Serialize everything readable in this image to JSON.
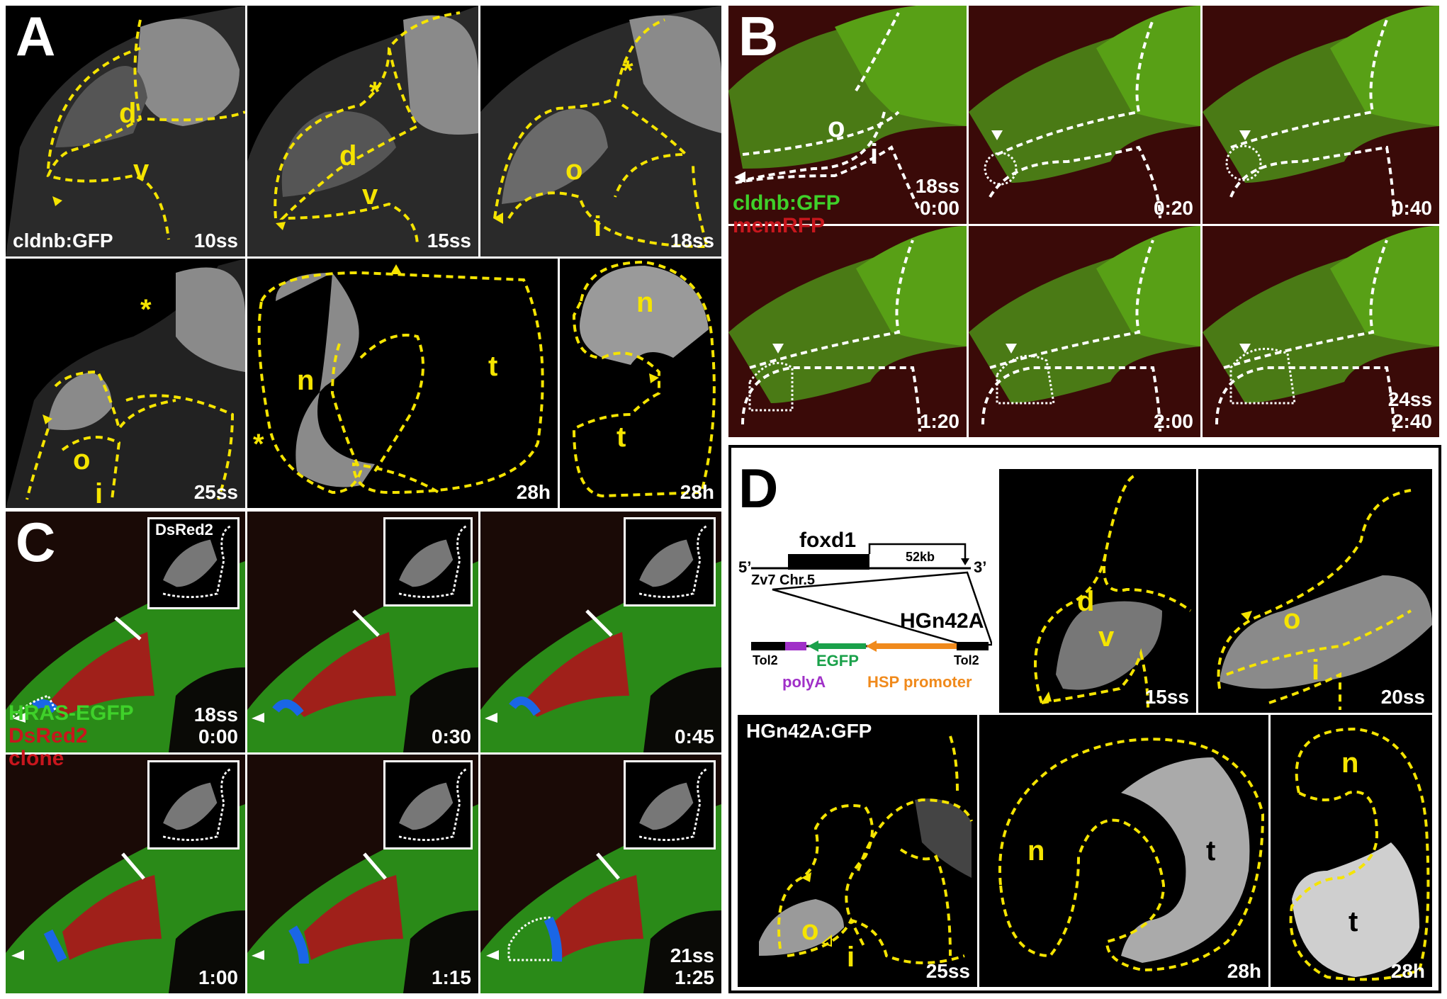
{
  "panel_a": {
    "letter": "A",
    "t1": {
      "stamp": "10ss",
      "marker": "cldnb:GFP",
      "d": "d",
      "v": "v"
    },
    "t2": {
      "stamp": "15ss",
      "d": "d",
      "v": "v",
      "star": "*"
    },
    "t3": {
      "stamp": "18ss",
      "o": "o",
      "i": "i",
      "star": "*"
    },
    "t4": {
      "stamp": "25ss",
      "o": "o",
      "i": "i",
      "star": "*"
    },
    "t5": {
      "stamp": "28h",
      "n": "n",
      "t": "t",
      "star": "*"
    },
    "t6": {
      "stamp": "28h",
      "n": "n",
      "t": "t"
    }
  },
  "panel_b": {
    "letter": "B",
    "o": "o",
    "i": "i",
    "marker_green": "cldnb:GFP",
    "marker_red": "memRFP",
    "t1": {
      "stage": "18ss",
      "time": "0:00"
    },
    "t2": {
      "time": "0:20"
    },
    "t3": {
      "time": "0:40"
    },
    "t4": {
      "time": "1:20"
    },
    "t5": {
      "time": "2:00"
    },
    "t6": {
      "stage": "24ss",
      "time": "2:40"
    }
  },
  "panel_c": {
    "letter": "C",
    "inset_label": "DsRed2",
    "marker_green": "HRAS-EGFP",
    "marker_red1": "DsRed2",
    "marker_red2": "clone",
    "t1": {
      "stage": "18ss",
      "time": "0:00"
    },
    "t2": {
      "time": "0:30"
    },
    "t3": {
      "time": "0:45"
    },
    "t4": {
      "time": "1:00"
    },
    "t5": {
      "time": "1:15"
    },
    "t6": {
      "stage": "21ss",
      "time": "1:25"
    }
  },
  "panel_d": {
    "letter": "D",
    "diagram": {
      "gene": "foxd1",
      "distance": "52kb",
      "five_prime": "5’",
      "three_prime": "3’",
      "chromosome": "Zv7 Chr.5",
      "construct": "HGn42A",
      "tol2_left": "Tol2",
      "tol2_right": "Tol2",
      "egfp": "EGFP",
      "polya": "polyA",
      "promoter": "HSP promoter"
    },
    "t1": {
      "stamp": "15ss",
      "d": "d",
      "v": "v"
    },
    "t2": {
      "stamp": "20ss",
      "o": "o",
      "i": "i"
    },
    "t3": {
      "stamp": "25ss",
      "marker": "HGn42A:GFP",
      "o": "o",
      "i": "i"
    },
    "t4": {
      "stamp": "28h",
      "n": "n",
      "t": "t"
    },
    "t5": {
      "stamp": "28h",
      "n": "n",
      "t": "t"
    }
  },
  "colors": {
    "yellow_outline": "#f5e400",
    "green_channel": "#3fd12a",
    "red_channel": "#c8161d",
    "egfp_arrow": "#1aa14a",
    "polya_block": "#a030c8",
    "promoter_arrow": "#f08a1c"
  }
}
